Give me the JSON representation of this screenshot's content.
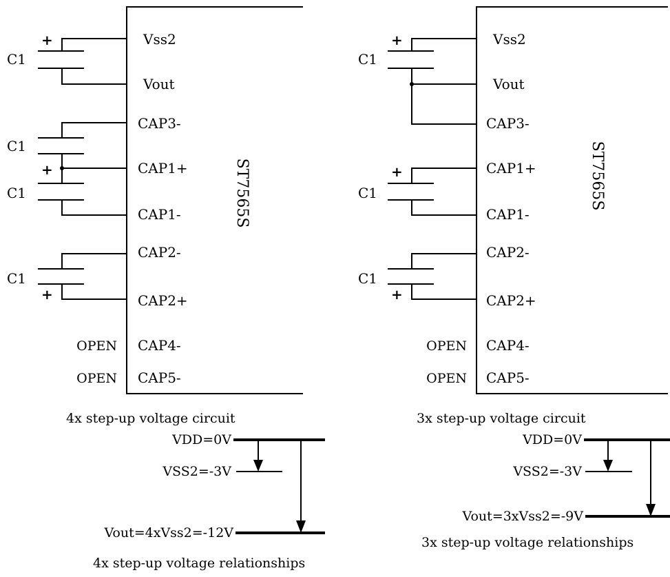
{
  "left": {
    "pins": [
      "Vss2",
      "Vout",
      "CAP3-",
      "CAP1+",
      "CAP1-",
      "CAP2-",
      "CAP2+",
      "CAP4-",
      "CAP5-"
    ],
    "cap_labels": [
      "C1",
      "C1",
      "C1",
      "C1"
    ],
    "polarity": [
      "+",
      "+",
      "+"
    ],
    "open_labels": [
      "OPEN",
      "OPEN"
    ],
    "chip": "ST7565S",
    "circuit_caption": "4x step-up voltage circuit",
    "levels": [
      "VDD=0V",
      "VSS2=-3V",
      "Vout=4xVss2=-12V"
    ],
    "relationship_caption": "4x step-up voltage relationships"
  },
  "right": {
    "pins": [
      "Vss2",
      "Vout",
      "CAP3-",
      "CAP1+",
      "CAP1-",
      "CAP2-",
      "CAP2+",
      "CAP4-",
      "CAP5-"
    ],
    "cap_labels": [
      "C1",
      "C1",
      "C1"
    ],
    "polarity": [
      "+",
      "+",
      "+"
    ],
    "open_labels": [
      "OPEN",
      "OPEN"
    ],
    "chip": "ST7565S",
    "circuit_caption": "3x step-up voltage circuit",
    "levels": [
      "VDD=0V",
      "VSS2=-3V",
      "Vout=3xVss2=-9V"
    ],
    "relationship_caption": "3x step-up voltage relationships"
  }
}
